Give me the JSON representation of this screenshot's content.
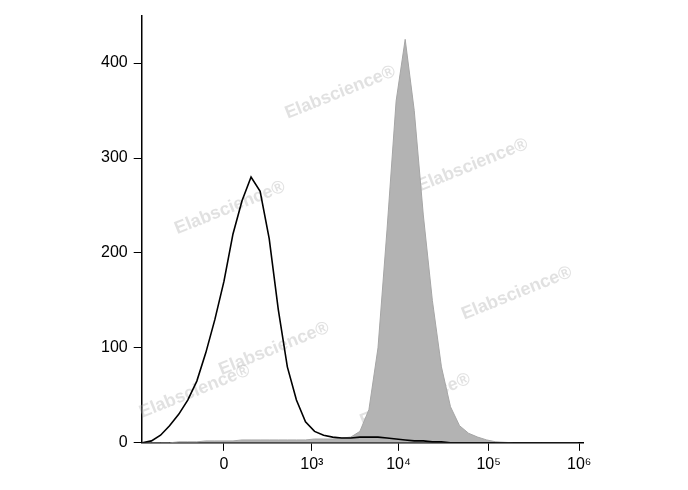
{
  "chart_data": {
    "type": "line",
    "log": "x",
    "grid": false,
    "annotations": [
      "Elabscience®"
    ],
    "x": [
      -833,
      -637,
      -481,
      -358,
      -259,
      -181,
      -119,
      -70,
      -31,
      0,
      31,
      70,
      119,
      181,
      259,
      358,
      481,
      637,
      833,
      1080,
      1391,
      1782,
      2274,
      2894,
      3675,
      4657,
      5895,
      7452,
      9412,
      11880,
      14988,
      18900,
      23820,
      30024,
      37824,
      47652,
      60024,
      75600,
      95196,
      119880,
      190068,
      379356,
      953076
    ],
    "series": [
      {
        "type": "area",
        "color": "#b3b3b3",
        "values": [
          0,
          0,
          0,
          0,
          1,
          1,
          1,
          2,
          2,
          2,
          2,
          3,
          3,
          3,
          3,
          3,
          3,
          3,
          3,
          4,
          4,
          4,
          5,
          6,
          12,
          35,
          100,
          225,
          360,
          425,
          350,
          240,
          150,
          80,
          38,
          18,
          10,
          6,
          3,
          1,
          0,
          0,
          0
        ]
      },
      {
        "type": "line",
        "color": "#000000",
        "values": [
          0,
          2,
          8,
          18,
          30,
          45,
          65,
          95,
          130,
          170,
          220,
          255,
          280,
          265,
          215,
          140,
          80,
          45,
          22,
          12,
          8,
          6,
          5,
          5,
          6,
          6,
          6,
          5,
          4,
          3,
          2,
          2,
          1,
          1,
          0,
          0,
          0,
          0,
          0,
          0,
          0,
          0,
          0
        ]
      }
    ],
    "xlim": [
      -850,
      1100000
    ],
    "xticks": [
      0,
      {
        "value": 1000,
        "label": "10³"
      },
      {
        "value": 10000,
        "label": "10⁴"
      },
      {
        "value": 100000,
        "label": "10⁵"
      },
      {
        "value": 1000000,
        "label": "10⁶"
      }
    ],
    "ylim": [
      0,
      450
    ],
    "yticks": [
      0,
      100,
      200,
      300,
      400
    ]
  }
}
